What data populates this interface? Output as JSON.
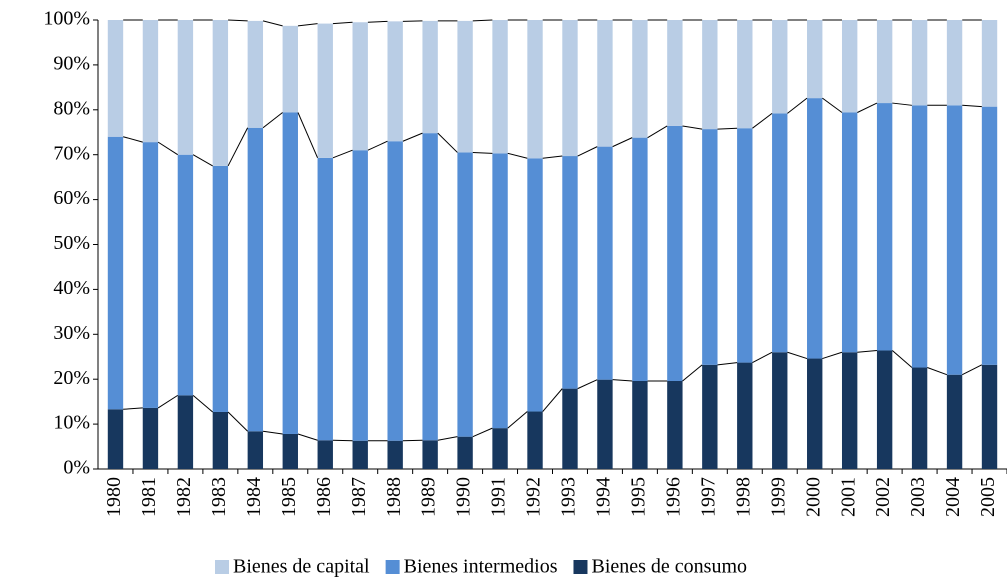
{
  "chart_data": {
    "type": "stacked_bar",
    "categories": [
      "1980",
      "1981",
      "1982",
      "1983",
      "1984",
      "1985",
      "1986",
      "1987",
      "1988",
      "1989",
      "1990",
      "1991",
      "1992",
      "1993",
      "1994",
      "1995",
      "1996",
      "1997",
      "1998",
      "1999",
      "2000",
      "2001",
      "2002",
      "2003",
      "2004",
      "2005"
    ],
    "series": [
      {
        "name": "Bienes de consumo",
        "color": "#17375e",
        "values": [
          13.3,
          13.6,
          16.4,
          12.7,
          8.4,
          7.8,
          6.4,
          6.3,
          6.3,
          6.4,
          7.2,
          9.1,
          12.8,
          17.9,
          19.9,
          19.6,
          19.6,
          23.2,
          23.7,
          26,
          24.6,
          26,
          26.4,
          22.6,
          21,
          23.2
        ]
      },
      {
        "name": "Bienes intermedios",
        "color": "#558ed5",
        "values": [
          60.7,
          59.2,
          53.6,
          54.8,
          67.6,
          71.6,
          62.9,
          64.7,
          66.7,
          68.4,
          63.3,
          61.2,
          56.4,
          51.8,
          51.9,
          54.2,
          56.8,
          52.5,
          52.2,
          53.2,
          58,
          53.4,
          55.1,
          58.4,
          60,
          57.5
        ]
      },
      {
        "name": "Bienes de capital",
        "color": "#b9cde5",
        "values": [
          26,
          27.2,
          30,
          32.5,
          23.8,
          19.3,
          29.9,
          28.5,
          26.7,
          25,
          29.3,
          29.7,
          30.8,
          30.3,
          28.2,
          26.2,
          23.6,
          24.3,
          24.1,
          20.8,
          17.4,
          20.6,
          18.5,
          19,
          19,
          19.3
        ]
      }
    ],
    "ylim": [
      0,
      100
    ],
    "yticks": [
      {
        "value": 0,
        "label": "0%"
      },
      {
        "value": 10,
        "label": "10%"
      },
      {
        "value": 20,
        "label": "20%"
      },
      {
        "value": 30,
        "label": "30%"
      },
      {
        "value": 40,
        "label": "40%"
      },
      {
        "value": 50,
        "label": "50%"
      },
      {
        "value": 60,
        "label": "60%"
      },
      {
        "value": 70,
        "label": "70%"
      },
      {
        "value": 80,
        "label": "80%"
      },
      {
        "value": 90,
        "label": "90%"
      },
      {
        "value": 100,
        "label": "100%"
      }
    ],
    "legend": [
      "Bienes de capital",
      "Bienes intermedios",
      "Bienes de consumo"
    ],
    "grid": false
  }
}
